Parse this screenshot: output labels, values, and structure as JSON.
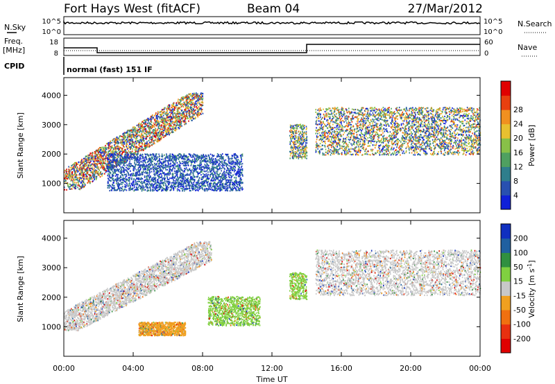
{
  "header": {
    "station": "Fort Hays West (fitACF)",
    "beam": "Beam 04",
    "date": "27/Mar/2012"
  },
  "panels": {
    "nsky_label": "N.Sky",
    "nsearch_label": "N.Search",
    "noise_left_ticks": [
      "10^5",
      "10^0"
    ],
    "noise_right_ticks": [
      "10^5",
      "10^0"
    ],
    "freq_label": "Freq.",
    "freq_unit": "[MHz]",
    "freq_ticks": [
      "18",
      "8"
    ],
    "nave_label": "Nave",
    "nave_ticks": [
      "60",
      "0"
    ],
    "cpid_label": "CPID",
    "cpid_text": "normal (fast) 151 IF"
  },
  "chart_data": [
    {
      "type": "heatmap",
      "title": "",
      "ylabel": "Slant Range [km]",
      "yticks": [
        1000,
        2000,
        3000,
        4000
      ],
      "ylim": [
        0,
        4600
      ],
      "xlabel": "Time UT",
      "xticks": [
        "00:00",
        "04:00",
        "08:00",
        "12:00",
        "16:00",
        "20:00",
        "00:00"
      ],
      "xlim_hours": [
        0,
        24
      ],
      "colorbar": {
        "label": "Power [dB]",
        "ticks": [
          "4",
          "8",
          "12",
          "16",
          "20",
          "24",
          "28"
        ],
        "colors": [
          "#1020d8",
          "#2850b0",
          "#2f7e8c",
          "#4fa060",
          "#88c048",
          "#e8c030",
          "#f09020",
          "#e84010",
          "#e00000"
        ]
      },
      "echo_regions": [
        {
          "t_start": 0.0,
          "t_end": 8.0,
          "range_start": 1000,
          "range_end": 3900,
          "peak_db": 28
        },
        {
          "t_start": 2.5,
          "t_end": 10.3,
          "range_start": 700,
          "range_end": 2100,
          "peak_db": 10
        },
        {
          "t_start": 13.0,
          "t_end": 14.0,
          "range_start": 1800,
          "range_end": 3100,
          "peak_db": 22
        },
        {
          "t_start": 14.5,
          "t_end": 24.0,
          "range_start": 1900,
          "range_end": 3700,
          "peak_db": 24
        }
      ]
    },
    {
      "type": "heatmap",
      "title": "",
      "ylabel": "Slant Range [km]",
      "yticks": [
        1000,
        2000,
        3000,
        4000
      ],
      "ylim": [
        0,
        4600
      ],
      "xlabel": "Time UT",
      "xticks": [
        "00:00",
        "04:00",
        "08:00",
        "12:00",
        "16:00",
        "20:00",
        "00:00"
      ],
      "xlim_hours": [
        0,
        24
      ],
      "colorbar": {
        "label": "Velocity [m s^-1]",
        "ticks": [
          "200",
          "100",
          "50",
          "15",
          "-15",
          "-50",
          "-100",
          "-200"
        ],
        "colors": [
          "#1030c0",
          "#2060a0",
          "#309040",
          "#80d040",
          "#c8c8c8",
          "#f0a020",
          "#f07010",
          "#e83010",
          "#e00000"
        ]
      },
      "echo_regions": [
        {
          "t_start": 0.0,
          "t_end": 8.5,
          "range_start": 1100,
          "range_end": 3700,
          "velocity": 0
        },
        {
          "t_start": 4.3,
          "t_end": 7.0,
          "range_start": 700,
          "range_end": 1200,
          "velocity": -50
        },
        {
          "t_start": 8.3,
          "t_end": 11.3,
          "range_start": 1000,
          "range_end": 2100,
          "velocity": 50
        },
        {
          "t_start": 13.0,
          "t_end": 14.0,
          "range_start": 1900,
          "range_end": 2900,
          "velocity": 50
        },
        {
          "t_start": 14.5,
          "t_end": 24.0,
          "range_start": 2000,
          "range_end": 3700,
          "velocity": 0
        }
      ]
    }
  ]
}
